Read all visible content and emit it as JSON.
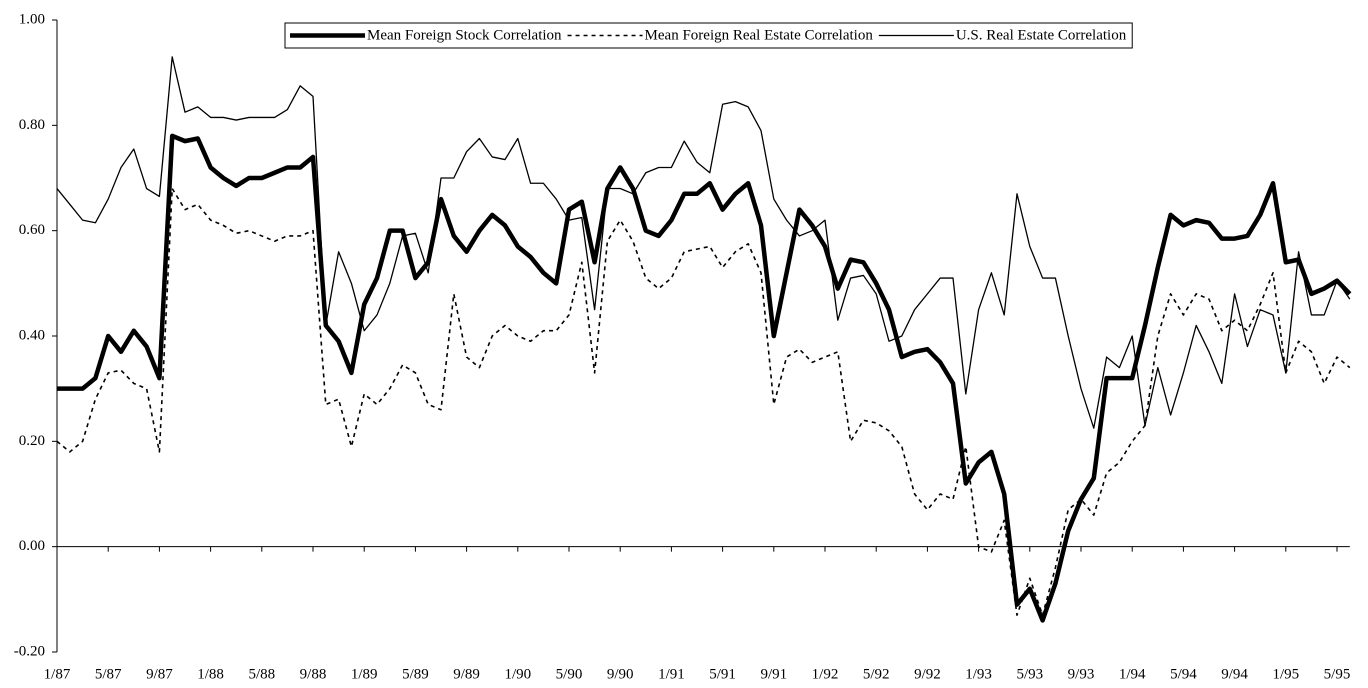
{
  "chart_data": {
    "type": "line",
    "categories": [
      "1/87",
      null,
      null,
      null,
      "5/87",
      null,
      null,
      null,
      "9/87",
      null,
      null,
      null,
      "1/88",
      null,
      null,
      null,
      "5/88",
      null,
      null,
      null,
      "9/88",
      null,
      null,
      null,
      "1/89",
      null,
      null,
      null,
      "5/89",
      null,
      null,
      null,
      "9/89",
      null,
      null,
      null,
      "1/90",
      null,
      null,
      null,
      "5/90",
      null,
      null,
      null,
      "9/90",
      null,
      null,
      null,
      "1/91",
      null,
      null,
      null,
      "5/91",
      null,
      null,
      null,
      "9/91",
      null,
      null,
      null,
      "1/92",
      null,
      null,
      null,
      "5/92",
      null,
      null,
      null,
      "9/92",
      null,
      null,
      null,
      "1/93",
      null,
      null,
      null,
      "5/93",
      null,
      null,
      null,
      "9/93",
      null,
      null,
      null,
      "1/94",
      null,
      null,
      null,
      "5/94",
      null,
      null,
      null,
      "9/94",
      null,
      null,
      null,
      "1/95",
      null,
      null,
      null,
      "5/95",
      null
    ],
    "series": [
      {
        "name": "Mean Foreign Stock Correlation",
        "color": "#000000",
        "style": "thick",
        "values": [
          0.3,
          0.3,
          0.3,
          0.32,
          0.4,
          0.37,
          0.41,
          0.38,
          0.32,
          0.78,
          0.77,
          0.775,
          0.72,
          0.7,
          0.685,
          0.7,
          0.7,
          0.71,
          0.72,
          0.72,
          0.74,
          0.42,
          0.39,
          0.33,
          0.46,
          0.51,
          0.6,
          0.6,
          0.51,
          0.54,
          0.66,
          0.59,
          0.56,
          0.6,
          0.63,
          0.61,
          0.57,
          0.55,
          0.52,
          0.5,
          0.64,
          0.655,
          0.54,
          0.68,
          0.72,
          0.68,
          0.6,
          0.59,
          0.62,
          0.67,
          0.67,
          0.69,
          0.64,
          0.67,
          0.69,
          0.61,
          0.4,
          0.52,
          0.64,
          0.61,
          0.57,
          0.49,
          0.545,
          0.54,
          0.5,
          0.45,
          0.36,
          0.37,
          0.375,
          0.35,
          0.31,
          0.12,
          0.16,
          0.18,
          0.1,
          -0.11,
          -0.08,
          -0.14,
          -0.07,
          0.03,
          0.09,
          0.13,
          0.32,
          0.32,
          0.32,
          0.42,
          0.53,
          0.63,
          0.61,
          0.62,
          0.615,
          0.585,
          0.585,
          0.59,
          0.63,
          0.69,
          0.54,
          0.545,
          0.48,
          0.49,
          0.505,
          0.48
        ]
      },
      {
        "name": "Mean Foreign Real Estate Correlation",
        "color": "#000000",
        "style": "dotted",
        "values": [
          0.2,
          0.18,
          0.2,
          0.28,
          0.33,
          0.335,
          0.31,
          0.3,
          0.18,
          0.68,
          0.64,
          0.65,
          0.62,
          0.61,
          0.595,
          0.6,
          0.59,
          0.58,
          0.59,
          0.59,
          0.6,
          0.27,
          0.28,
          0.19,
          0.29,
          0.27,
          0.3,
          0.345,
          0.33,
          0.27,
          0.26,
          0.48,
          0.36,
          0.34,
          0.4,
          0.42,
          0.4,
          0.39,
          0.41,
          0.41,
          0.44,
          0.54,
          0.33,
          0.58,
          0.62,
          0.58,
          0.51,
          0.49,
          0.51,
          0.56,
          0.565,
          0.57,
          0.53,
          0.56,
          0.575,
          0.52,
          0.27,
          0.36,
          0.375,
          0.35,
          0.36,
          0.37,
          0.2,
          0.24,
          0.235,
          0.22,
          0.19,
          0.1,
          0.07,
          0.1,
          0.09,
          0.19,
          0.0,
          -0.01,
          0.05,
          -0.13,
          -0.06,
          -0.13,
          -0.04,
          0.07,
          0.09,
          0.06,
          0.14,
          0.16,
          0.2,
          0.23,
          0.4,
          0.48,
          0.44,
          0.48,
          0.47,
          0.41,
          0.43,
          0.41,
          0.46,
          0.52,
          0.33,
          0.39,
          0.37,
          0.31,
          0.36,
          0.34
        ]
      },
      {
        "name": "U.S. Real Estate Correlation",
        "color": "#000000",
        "style": "thin",
        "values": [
          0.68,
          0.65,
          0.62,
          0.615,
          0.66,
          0.72,
          0.755,
          0.68,
          0.665,
          0.93,
          0.825,
          0.835,
          0.815,
          0.815,
          0.81,
          0.815,
          0.815,
          0.815,
          0.83,
          0.875,
          0.855,
          0.42,
          0.56,
          0.5,
          0.41,
          0.44,
          0.5,
          0.59,
          0.595,
          0.52,
          0.7,
          0.7,
          0.75,
          0.775,
          0.74,
          0.735,
          0.775,
          0.69,
          0.69,
          0.66,
          0.62,
          0.625,
          0.45,
          0.68,
          0.68,
          0.67,
          0.71,
          0.72,
          0.72,
          0.77,
          0.73,
          0.71,
          0.84,
          0.845,
          0.835,
          0.79,
          0.66,
          0.62,
          0.59,
          0.6,
          0.62,
          0.43,
          0.51,
          0.515,
          0.48,
          0.39,
          0.4,
          0.45,
          0.48,
          0.51,
          0.51,
          0.29,
          0.45,
          0.52,
          0.44,
          0.67,
          0.57,
          0.51,
          0.51,
          0.4,
          0.3,
          0.225,
          0.36,
          0.34,
          0.4,
          0.23,
          0.34,
          0.25,
          0.33,
          0.42,
          0.37,
          0.31,
          0.48,
          0.38,
          0.45,
          0.44,
          0.33,
          0.56,
          0.44,
          0.44,
          0.505,
          0.47
        ]
      }
    ],
    "ylim": [
      -0.2,
      1.0
    ],
    "yticks": [
      {
        "value": -0.2,
        "label": "-0.20"
      },
      {
        "value": 0,
        "label": "0.00"
      },
      {
        "value": 0.2,
        "label": "0.20"
      },
      {
        "value": 0.4,
        "label": "0.40"
      },
      {
        "value": 0.6,
        "label": "0.60"
      },
      {
        "value": 0.8,
        "label": "0.80"
      },
      {
        "value": 1.0,
        "label": "1.00"
      }
    ],
    "legend": "top"
  }
}
